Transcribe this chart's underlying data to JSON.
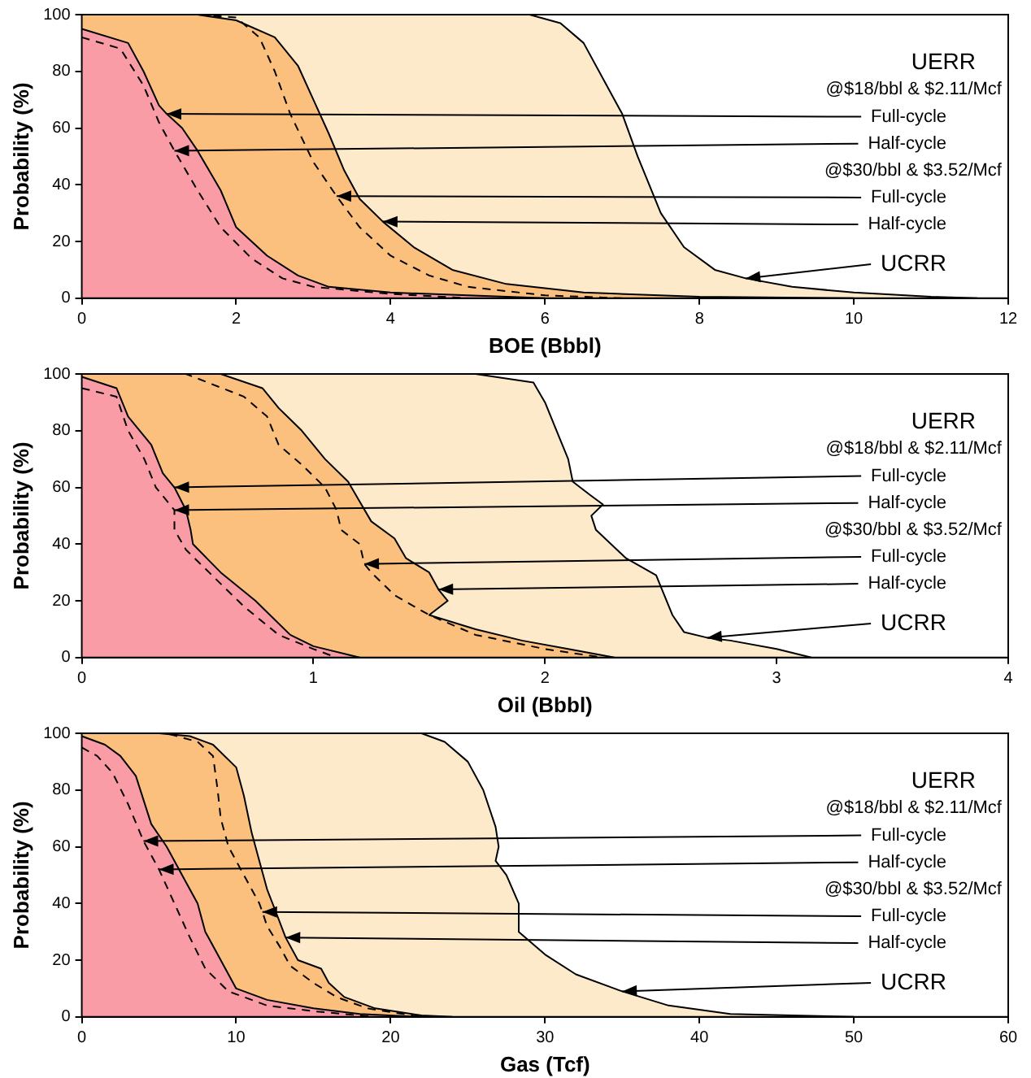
{
  "chart_data": [
    {
      "type": "area",
      "xlabel": "BOE (Bbbl)",
      "ylabel": "Probability (%)",
      "xlim": [
        0,
        12
      ],
      "xticks": [
        0,
        2,
        4,
        6,
        8,
        10,
        12
      ],
      "ylim": [
        0,
        100
      ],
      "yticks": [
        0,
        20,
        40,
        60,
        80,
        100
      ],
      "grid": false,
      "legend": false,
      "annotations": [
        "UERR",
        "@$18/bbl & $2.11/Mcf",
        {
          "text": "Full-cycle",
          "x": 1.1,
          "y": 65
        },
        {
          "text": "Half-cycle",
          "x": 1.2,
          "y": 52
        },
        "@$30/bbl & $3.52/Mcf",
        {
          "text": "Full-cycle",
          "x": 3.3,
          "y": 36
        },
        {
          "text": "Half-cycle",
          "x": 3.9,
          "y": 27
        },
        {
          "text": "UCRR",
          "x": 8.6,
          "y": 7
        }
      ],
      "series": [
        {
          "type": "area",
          "color": "#fdeacb",
          "x": [
            0,
            5.8,
            6.2,
            6.5,
            6.8,
            7.0,
            7.2,
            7.5,
            7.8,
            8.2,
            8.6,
            9.2,
            10,
            11,
            11.6
          ],
          "values": [
            100,
            100,
            97,
            90,
            75,
            65,
            50,
            30,
            18,
            10,
            7,
            4,
            2,
            0.5,
            0
          ]
        },
        {
          "type": "area",
          "color": "#fbc07e",
          "x": [
            0,
            1.5,
            2,
            2.5,
            2.8,
            3.0,
            3.2,
            3.4,
            3.6,
            3.9,
            4.3,
            4.8,
            5.5,
            6.5,
            8,
            10
          ],
          "values": [
            100,
            100,
            98,
            92,
            82,
            70,
            58,
            45,
            35,
            27,
            18,
            10,
            5,
            2,
            0.5,
            0
          ]
        },
        {
          "type": "line",
          "color": "#000000",
          "line_style": "dashed",
          "x": [
            0,
            1.5,
            2.0,
            2.3,
            2.5,
            2.7,
            3.0,
            3.3,
            3.6,
            4,
            4.5,
            5,
            6,
            7
          ],
          "values": [
            100,
            100,
            99,
            92,
            80,
            65,
            48,
            36,
            25,
            15,
            8,
            4,
            1,
            0
          ]
        },
        {
          "type": "area",
          "color": "#f99ca6",
          "x": [
            0,
            0.6,
            0.8,
            1.0,
            1.1,
            1.3,
            1.5,
            1.8,
            2.0,
            2.4,
            2.8,
            3.2,
            4,
            5,
            6
          ],
          "values": [
            95,
            90,
            80,
            68,
            65,
            60,
            52,
            38,
            25,
            15,
            8,
            4,
            2,
            1,
            0
          ]
        },
        {
          "type": "line",
          "color": "#000000",
          "line_style": "dashed",
          "x": [
            0,
            0.5,
            0.8,
            1.0,
            1.2,
            1.5,
            1.8,
            2.2,
            2.6,
            3,
            4,
            5
          ],
          "values": [
            92,
            88,
            75,
            62,
            52,
            38,
            25,
            14,
            7,
            4,
            1.5,
            0
          ]
        }
      ]
    },
    {
      "type": "area",
      "xlabel": "Oil (Bbbl)",
      "ylabel": "Probability (%)",
      "xlim": [
        0,
        4
      ],
      "xticks": [
        0,
        1,
        2,
        3,
        4
      ],
      "ylim": [
        0,
        100
      ],
      "yticks": [
        0,
        20,
        40,
        60,
        80,
        100
      ],
      "grid": false,
      "legend": false,
      "annotations": [
        "UERR",
        "@$18/bbl & $2.11/Mcf",
        {
          "text": "Full-cycle",
          "x": 0.4,
          "y": 60
        },
        {
          "text": "Half-cycle",
          "x": 0.4,
          "y": 52
        },
        "@$30/bbl & $3.52/Mcf",
        {
          "text": "Full-cycle",
          "x": 1.22,
          "y": 33
        },
        {
          "text": "Half-cycle",
          "x": 1.54,
          "y": 24
        },
        {
          "text": "UCRR",
          "x": 2.7,
          "y": 7
        }
      ],
      "series": [
        {
          "type": "area",
          "color": "#fdeacb",
          "x": [
            0,
            1.7,
            1.95,
            2.0,
            2.05,
            2.1,
            2.12,
            2.2,
            2.25,
            2.2,
            2.22,
            2.35,
            2.48,
            2.5,
            2.55,
            2.6,
            2.7,
            2.8,
            3.0,
            3.15
          ],
          "values": [
            100,
            100,
            97,
            90,
            80,
            70,
            62,
            57,
            54,
            50,
            45,
            35,
            29,
            25,
            15,
            9,
            7,
            6,
            3,
            0
          ]
        },
        {
          "type": "area",
          "color": "#fbc07e",
          "x": [
            0,
            0.6,
            0.78,
            0.85,
            0.95,
            1.05,
            1.15,
            1.2,
            1.25,
            1.35,
            1.4,
            1.5,
            1.54,
            1.58,
            1.5,
            1.7,
            1.9,
            2.1,
            2.3
          ],
          "values": [
            100,
            100,
            95,
            88,
            80,
            70,
            62,
            55,
            48,
            42,
            35,
            30,
            24,
            20,
            15,
            10,
            6,
            3,
            0
          ]
        },
        {
          "type": "line",
          "color": "#000000",
          "line_style": "dashed",
          "x": [
            0,
            0.45,
            0.7,
            0.8,
            0.85,
            0.95,
            1.05,
            1.1,
            1.12,
            1.2,
            1.22,
            1.25,
            1.35,
            1.5,
            1.7,
            2,
            2.25
          ],
          "values": [
            100,
            100,
            92,
            85,
            75,
            68,
            60,
            52,
            45,
            40,
            33,
            30,
            22,
            15,
            8,
            3,
            0
          ]
        },
        {
          "type": "area",
          "color": "#f99ca6",
          "x": [
            0,
            0.15,
            0.2,
            0.3,
            0.35,
            0.4,
            0.45,
            0.47,
            0.48,
            0.6,
            0.75,
            0.9,
            1.0,
            1.2
          ],
          "values": [
            99,
            95,
            85,
            75,
            65,
            60,
            52,
            45,
            40,
            30,
            20,
            8,
            4,
            0
          ]
        },
        {
          "type": "line",
          "color": "#000000",
          "line_style": "dashed",
          "x": [
            0,
            0.15,
            0.2,
            0.27,
            0.32,
            0.4,
            0.4,
            0.45,
            0.55,
            0.7,
            0.85,
            1.0,
            1.1
          ],
          "values": [
            95,
            92,
            80,
            70,
            60,
            52,
            45,
            38,
            30,
            18,
            8,
            3,
            0
          ]
        }
      ]
    },
    {
      "type": "area",
      "xlabel": "Gas (Tcf)",
      "ylabel": "Probability (%)",
      "xlim": [
        0,
        60
      ],
      "xticks": [
        0,
        10,
        20,
        30,
        40,
        50,
        60
      ],
      "ylim": [
        0,
        100
      ],
      "yticks": [
        0,
        20,
        40,
        60,
        80,
        100
      ],
      "grid": false,
      "legend": false,
      "annotations": [
        "UERR",
        "@$18/bbl & $2.11/Mcf",
        {
          "text": "Full-cycle",
          "x": 4,
          "y": 62
        },
        {
          "text": "Half-cycle",
          "x": 5,
          "y": 52
        },
        "@$30/bbl & $3.52/Mcf",
        {
          "text": "Full-cycle",
          "x": 11.7,
          "y": 37
        },
        {
          "text": "Half-cycle",
          "x": 13.2,
          "y": 28
        },
        {
          "text": "UCRR",
          "x": 35,
          "y": 9
        }
      ],
      "series": [
        {
          "type": "area",
          "color": "#fdeacb",
          "x": [
            0,
            22,
            23.5,
            25,
            26,
            26.8,
            27,
            26.8,
            27.5,
            28.3,
            28.3,
            30,
            32,
            35,
            38,
            42,
            50
          ],
          "values": [
            100,
            100,
            97,
            90,
            80,
            67,
            60,
            55,
            50,
            40,
            30,
            22,
            15,
            9,
            4,
            1,
            0
          ]
        },
        {
          "type": "area",
          "color": "#fbc07e",
          "x": [
            0,
            5,
            7,
            8.5,
            10,
            10.5,
            11,
            11.5,
            12,
            12.5,
            13.2,
            14,
            15.5,
            16,
            17,
            19,
            22,
            24
          ],
          "values": [
            100,
            100,
            99,
            96,
            88,
            78,
            65,
            55,
            45,
            38,
            28,
            20,
            17,
            12,
            7,
            3,
            0.5,
            0
          ]
        },
        {
          "type": "line",
          "color": "#000000",
          "line_style": "dashed",
          "x": [
            0,
            5.5,
            7.5,
            8.5,
            8.8,
            9,
            9.5,
            10.5,
            11.5,
            11.7,
            12,
            12.8,
            13.5,
            15,
            16.5,
            18.5,
            22
          ],
          "values": [
            100,
            100,
            97,
            92,
            80,
            70,
            60,
            50,
            40,
            37,
            32,
            25,
            18,
            12,
            7,
            3,
            0
          ]
        },
        {
          "type": "area",
          "color": "#f99ca6",
          "x": [
            0,
            1.5,
            2.5,
            3.5,
            4.5,
            5.5,
            6.5,
            7.5,
            8,
            9,
            10,
            12,
            15,
            18,
            22
          ],
          "values": [
            99,
            96,
            92,
            85,
            68,
            60,
            50,
            40,
            30,
            20,
            10,
            6,
            3,
            1,
            0
          ]
        },
        {
          "type": "line",
          "color": "#000000",
          "line_style": "dashed",
          "x": [
            0,
            1,
            2,
            3,
            4,
            5,
            6,
            7,
            8,
            9.5,
            12,
            15,
            19
          ],
          "values": [
            95,
            92,
            86,
            75,
            62,
            52,
            40,
            28,
            17,
            9,
            4,
            2,
            0
          ]
        }
      ]
    }
  ]
}
